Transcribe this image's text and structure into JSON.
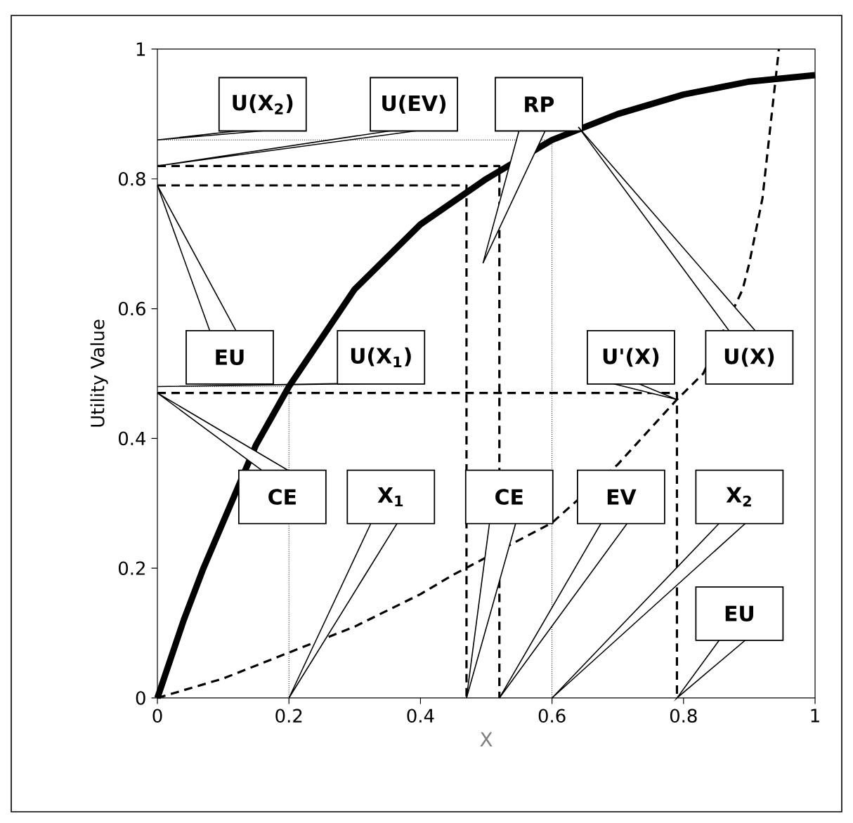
{
  "chart_data": {
    "type": "line",
    "xlabel": "X",
    "ylabel": "Utility Value",
    "xlim": [
      0,
      1
    ],
    "ylim": [
      0,
      1
    ],
    "xticks": [
      0,
      0.2,
      0.4,
      0.6,
      0.8,
      1
    ],
    "yticks": [
      0,
      0.2,
      0.4,
      0.6,
      0.8,
      1
    ],
    "grid": false,
    "marker": "none",
    "series": [
      {
        "color": "#000000",
        "line_style": "solid",
        "x": [
          0,
          0.04,
          0.07,
          0.15,
          0.2,
          0.3,
          0.4,
          0.5,
          0.6,
          0.7,
          0.8,
          0.9,
          1
        ],
        "values": [
          0,
          0.12,
          0.2,
          0.39,
          0.48,
          0.63,
          0.73,
          0.8,
          0.86,
          0.9,
          0.93,
          0.95,
          0.96
        ]
      },
      {
        "color": "#000000",
        "line_style": "dashed",
        "x": [
          0,
          0.1,
          0.2,
          0.3,
          0.4,
          0.45,
          0.6,
          0.7,
          0.79,
          0.83,
          0.89,
          0.9,
          0.92,
          0.945
        ],
        "values": [
          0,
          0.03,
          0.07,
          0.11,
          0.16,
          0.19,
          0.27,
          0.36,
          0.46,
          0.5,
          0.63,
          0.67,
          0.77,
          1
        ]
      },
      {
        "color": "#000000",
        "line_style": "dotted",
        "x": [
          0,
          0.6,
          0.6
        ],
        "values": [
          0.86,
          0.86,
          0
        ]
      },
      {
        "color": "#000000",
        "line_style": "dotted",
        "x": [
          0,
          0.2,
          0.2
        ],
        "values": [
          0.48,
          0.48,
          0
        ]
      },
      {
        "color": "#000000",
        "line_style": "dashed",
        "x": [
          0,
          0.52,
          0.52
        ],
        "values": [
          0.82,
          0.82,
          0
        ]
      },
      {
        "color": "#000000",
        "line_style": "dashed",
        "x": [
          0,
          0.47,
          0.47
        ],
        "values": [
          0.79,
          0.79,
          0
        ]
      },
      {
        "color": "#000000",
        "line_style": "dashed",
        "x": [
          0,
          0.79,
          0.79
        ],
        "values": [
          0.47,
          0.47,
          0
        ]
      }
    ],
    "annotations": [
      {
        "text": "U(X$_{2}$)",
        "x": 0,
        "y": 0.86
      },
      {
        "text": "U(EV)",
        "x": 0,
        "y": 0.82
      },
      "RP",
      "EU",
      {
        "text": "U(X$_{1}$)",
        "x": 0,
        "y": 0.48
      },
      {
        "text": "U'(X)",
        "x": 0.79,
        "y": 0.46
      },
      "U(X)",
      "CE",
      "X$_{1}$",
      {
        "text": "CE",
        "x": 0.47,
        "y": 0
      },
      "EV",
      "X$_{2}$",
      "EU"
    ]
  }
}
